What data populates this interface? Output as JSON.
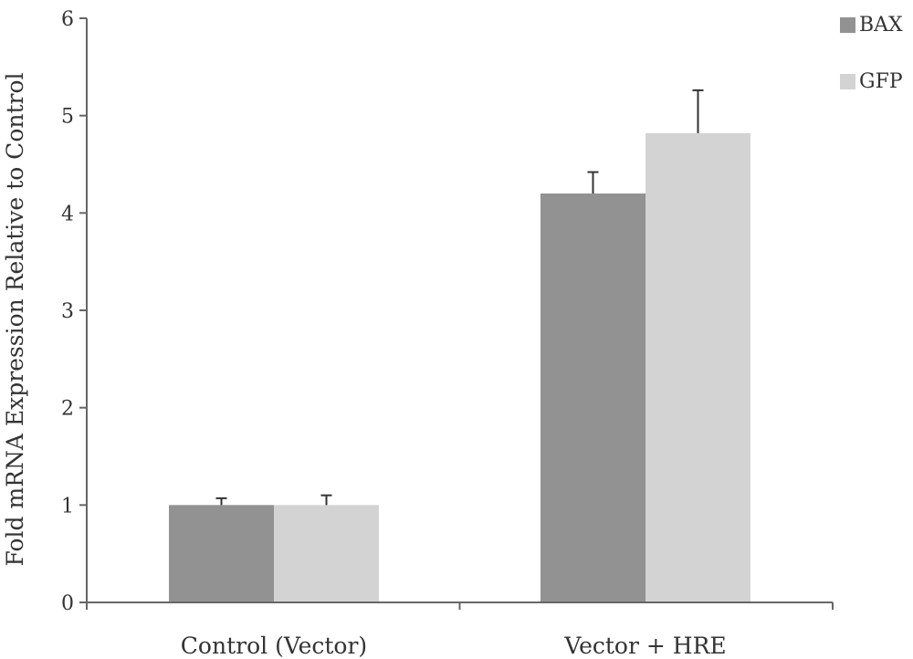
{
  "chart_data": {
    "type": "bar",
    "title": "",
    "xlabel": "",
    "ylabel": "Fold mRNA Expression Relative to Control",
    "categories": [
      "Control (Vector)",
      "Vector + HRE"
    ],
    "series": [
      {
        "name": "BAX",
        "color": "#929292",
        "values": [
          1.0,
          4.2
        ],
        "errors": [
          0.07,
          0.22
        ]
      },
      {
        "name": "GFP",
        "color": "#d3d3d3",
        "values": [
          1.0,
          4.82
        ],
        "errors": [
          0.1,
          0.44
        ]
      }
    ],
    "ylim": [
      0,
      6
    ],
    "yticks": [
      0,
      1,
      2,
      3,
      4,
      5,
      6
    ],
    "grid": false,
    "legend": "top-right"
  }
}
